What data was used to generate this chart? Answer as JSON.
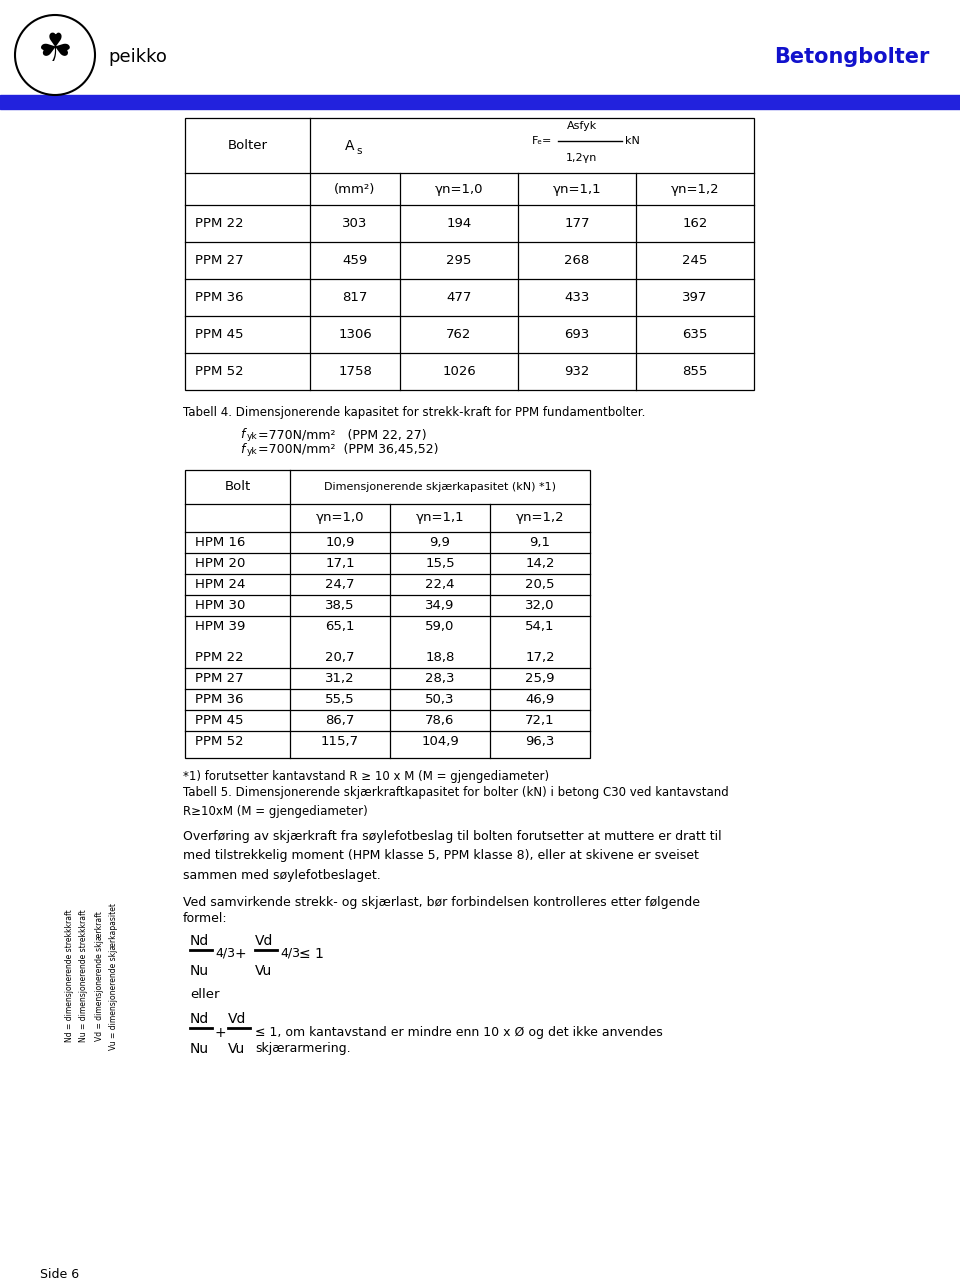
{
  "bg_color": "#ffffff",
  "header_blue": "#1111cc",
  "title_text": "Betongbolter",
  "company_text": "peikko",
  "blue_bar_color": "#2222dd",
  "table1_caption": "Tabell 4. Dimensjonerende kapasitet for strekk-kraft for PPM fundamentbolter.",
  "table1_rows": [
    [
      "PPM 22",
      "303",
      "194",
      "177",
      "162"
    ],
    [
      "PPM 27",
      "459",
      "295",
      "268",
      "245"
    ],
    [
      "PPM 36",
      "817",
      "477",
      "433",
      "397"
    ],
    [
      "PPM 45",
      "1306",
      "762",
      "693",
      "635"
    ],
    [
      "PPM 52",
      "1758",
      "1026",
      "932",
      "855"
    ]
  ],
  "table2_caption_note": "*1) forutsetter kantavstand R ≥ 10 x M (M = gjengediameter)",
  "table2_caption": "Tabell 5. Dimensjonerende skjærkraftkapasitet for bolter (kN) i betong C30 ved kantavstand\nR≥10xM (M = gjengediameter)",
  "table2_header": "Dimensjonerende skjærkapasitet (kN) *1)",
  "table2_subcols": [
    "γn=1,0",
    "γn=1,1",
    "γn=1,2"
  ],
  "table2_rows_hpm": [
    [
      "HPM 16",
      "10,9",
      "9,9",
      "9,1"
    ],
    [
      "HPM 20",
      "17,1",
      "15,5",
      "14,2"
    ],
    [
      "HPM 24",
      "24,7",
      "22,4",
      "20,5"
    ],
    [
      "HPM 30",
      "38,5",
      "34,9",
      "32,0"
    ],
    [
      "HPM 39",
      "65,1",
      "59,0",
      "54,1"
    ]
  ],
  "table2_rows_ppm": [
    [
      "PPM 22",
      "20,7",
      "18,8",
      "17,2"
    ],
    [
      "PPM 27",
      "31,2",
      "28,3",
      "25,9"
    ],
    [
      "PPM 36",
      "55,5",
      "50,3",
      "46,9"
    ],
    [
      "PPM 45",
      "86,7",
      "78,6",
      "72,1"
    ],
    [
      "PPM 52",
      "115,7",
      "104,9",
      "96,3"
    ]
  ],
  "para1": "Overføring av skjærkraft fra søylefotbeslag til bolten forutsetter at muttere er dratt til\nmed tilstrekkelig moment (HPM klasse 5, PPM klasse 8), eller at skivene er sveiset\nsammen med søylefotbeslaget.",
  "para2_line1": "Ved samvirkende strekk- og skjærlast, bør forbindelsen kontrolleres etter følgende",
  "para2_line2": "formel:",
  "sidebar_texts": [
    "Nd = dimensjonerende strekkkraft",
    "Nu = dimensjonerende strekkkraft",
    "Vd = dimensjonerende skjærkraft",
    "Vu = dimensjonerende skjærkapasitet"
  ],
  "footer_text": "Side 6"
}
